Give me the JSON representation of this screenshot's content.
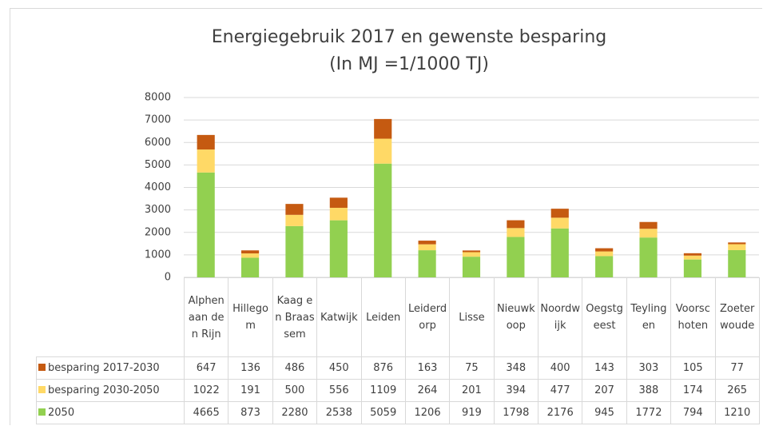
{
  "chart_data": {
    "type": "stacked-bar",
    "title": "Energiegebruik 2017 en gewenste besparing",
    "subtitle": "(In MJ =1/1000 TJ)",
    "categories": [
      "Alphen aan den Rijn",
      "Hillegom",
      "Kaag en Braassem",
      "Katwijk",
      "Leiden",
      "Leiderdorp",
      "Lisse",
      "Nieuwkoop",
      "Noordwijk",
      "Oegstgeest",
      "Teylingen",
      "Voorschoten",
      "Zoeterwoude"
    ],
    "series": [
      {
        "name": "besparing 2017-2030",
        "color": "#c55a11",
        "values": [
          647,
          136,
          486,
          450,
          876,
          163,
          75,
          348,
          400,
          143,
          303,
          105,
          77
        ]
      },
      {
        "name": "besparing 2030-2050",
        "color": "#ffd966",
        "values": [
          1022,
          191,
          500,
          556,
          1109,
          264,
          201,
          394,
          477,
          207,
          388,
          174,
          265
        ]
      },
      {
        "name": "2050",
        "color": "#92d050",
        "values": [
          4665,
          873,
          2280,
          2538,
          5059,
          1206,
          919,
          1798,
          2176,
          945,
          1772,
          794,
          1210
        ]
      }
    ],
    "ylim": [
      0,
      8000
    ],
    "yticks": [
      0,
      1000,
      2000,
      3000,
      4000,
      5000,
      6000,
      7000,
      8000
    ],
    "grid": true
  }
}
